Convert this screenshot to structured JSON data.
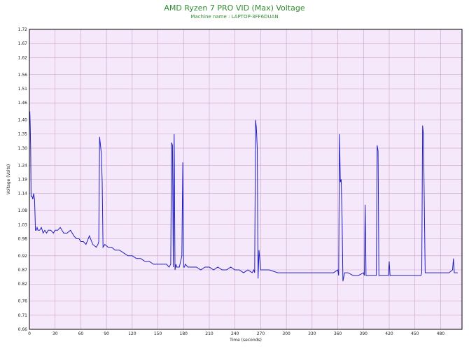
{
  "chart_data": {
    "type": "line",
    "title": "AMD Ryzen 7 PRO VID (Max) Voltage",
    "subtitle": "Machine name : LAPTOP-3FF6DUAN",
    "xlabel": "Time (seconds)",
    "ylabel": "Voltage (Volts)",
    "xlim": [
      0,
      505
    ],
    "ylim": [
      0.66,
      1.72
    ],
    "xticks": [
      0,
      30,
      60,
      90,
      120,
      150,
      180,
      210,
      240,
      270,
      300,
      330,
      360,
      390,
      420,
      450,
      480
    ],
    "yticks": [
      "0.66",
      "0.71",
      "0.76",
      "0.82",
      "0.87",
      "0.92",
      "0.98",
      "1.03",
      "1.08",
      "1.14",
      "1.19",
      "1.24",
      "1.30",
      "1.35",
      "1.40",
      "1.46",
      "1.51",
      "1.56",
      "1.62",
      "1.67",
      "1.72"
    ],
    "grid": true,
    "colors": {
      "line": "#1f1fbf",
      "plot_bg": "#f6e8fb",
      "grid": "#c8a0c8",
      "title": "#2e8b2e"
    },
    "series": [
      {
        "x": [
          0,
          0.5,
          1,
          1.5,
          2,
          3,
          4,
          5,
          6,
          6.5,
          7,
          8,
          9,
          10,
          12,
          14,
          16,
          18,
          20,
          22,
          25,
          28,
          30,
          33,
          36,
          40,
          44,
          48,
          52,
          55,
          58,
          60,
          63,
          66,
          70,
          74,
          78,
          80,
          81,
          82,
          83,
          84,
          85,
          86,
          88,
          92,
          96,
          100,
          105,
          110,
          115,
          120,
          125,
          130,
          135,
          140,
          145,
          150,
          155,
          160,
          163,
          165,
          166,
          167,
          168,
          169,
          170,
          171,
          172,
          175,
          178,
          179,
          180,
          181,
          182,
          185,
          190,
          195,
          200,
          205,
          210,
          215,
          220,
          225,
          230,
          235,
          240,
          245,
          250,
          255,
          260,
          262,
          263,
          264,
          265,
          266,
          267,
          268,
          270,
          275,
          280,
          290,
          300,
          310,
          320,
          330,
          340,
          350,
          355,
          360,
          361,
          362,
          363,
          364,
          365,
          366,
          368,
          372,
          378,
          384,
          390,
          391,
          392,
          393,
          396,
          400,
          405,
          406,
          407,
          408,
          410,
          415,
          419,
          420,
          421,
          425,
          430,
          440,
          450,
          455,
          457,
          458,
          459,
          460,
          462,
          466,
          470,
          475,
          480,
          485,
          490,
          494,
          495,
          496,
          498,
          500
        ],
        "values": [
          1.4,
          1.43,
          1.38,
          1.3,
          1.13,
          1.13,
          1.12,
          1.14,
          1.12,
          1.07,
          1.01,
          1.01,
          1.02,
          1.01,
          1.01,
          1.02,
          1.0,
          1.01,
          1.0,
          1.01,
          1.01,
          1.0,
          1.01,
          1.01,
          1.02,
          1.0,
          1.0,
          1.01,
          0.99,
          0.98,
          0.98,
          0.97,
          0.97,
          0.96,
          0.99,
          0.96,
          0.95,
          0.96,
          0.97,
          1.34,
          1.31,
          1.28,
          1.18,
          0.95,
          0.96,
          0.95,
          0.95,
          0.94,
          0.94,
          0.93,
          0.92,
          0.92,
          0.91,
          0.91,
          0.9,
          0.9,
          0.89,
          0.89,
          0.89,
          0.89,
          0.88,
          0.89,
          1.32,
          1.31,
          0.88,
          1.35,
          0.87,
          0.89,
          0.88,
          0.88,
          0.92,
          1.25,
          0.88,
          0.88,
          0.89,
          0.88,
          0.88,
          0.88,
          0.87,
          0.88,
          0.88,
          0.87,
          0.88,
          0.87,
          0.87,
          0.88,
          0.87,
          0.87,
          0.86,
          0.87,
          0.86,
          0.87,
          0.86,
          1.4,
          1.37,
          1.3,
          0.84,
          0.94,
          0.87,
          0.87,
          0.87,
          0.86,
          0.86,
          0.86,
          0.86,
          0.86,
          0.86,
          0.86,
          0.86,
          0.87,
          0.85,
          1.35,
          1.18,
          1.19,
          1.05,
          0.83,
          0.86,
          0.86,
          0.85,
          0.85,
          0.86,
          0.85,
          1.1,
          0.85,
          0.85,
          0.85,
          0.85,
          1.31,
          1.29,
          0.85,
          0.85,
          0.85,
          0.85,
          0.9,
          0.85,
          0.85,
          0.85,
          0.85,
          0.85,
          0.85,
          0.85,
          0.86,
          1.38,
          1.35,
          0.86,
          0.86,
          0.86,
          0.86,
          0.86,
          0.86,
          0.86,
          0.87,
          0.91,
          0.86,
          0.86,
          0.86
        ]
      }
    ]
  }
}
